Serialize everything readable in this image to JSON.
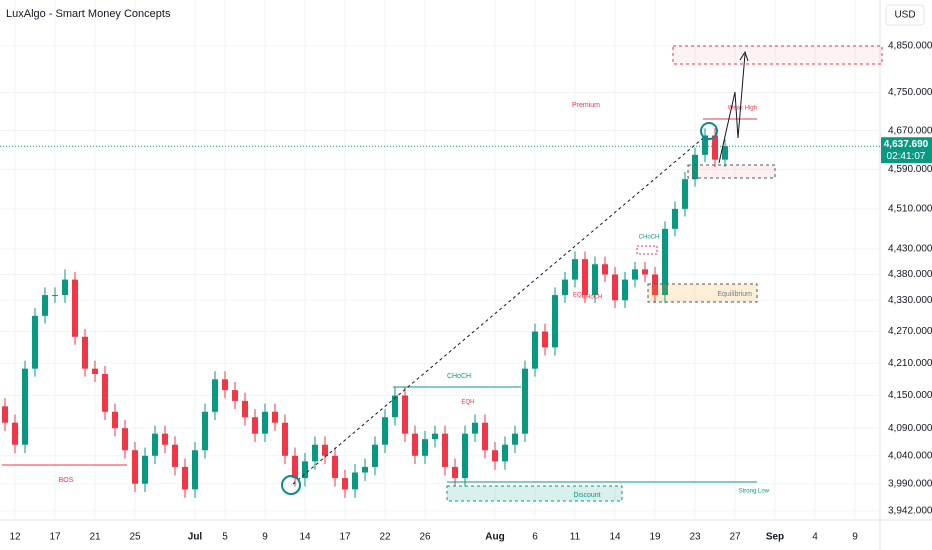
{
  "chart_data": {
    "type": "candlestick",
    "title": "LuxAlgo - Smart Money Concepts",
    "currency": "USD",
    "log_scale": true,
    "up_color": "#089981",
    "down_color": "#f23645",
    "categories": [
      null,
      "12",
      null,
      null,
      null,
      "17",
      null,
      null,
      null,
      "21",
      null,
      null,
      null,
      "25",
      null,
      null,
      null,
      null,
      null,
      "Jul",
      null,
      null,
      "5",
      null,
      null,
      null,
      "9",
      null,
      null,
      null,
      "14",
      null,
      null,
      null,
      "17",
      null,
      null,
      null,
      "22",
      null,
      null,
      null,
      "26",
      null,
      null,
      null,
      null,
      null,
      null,
      "Aug",
      null,
      null,
      null,
      "6",
      null,
      null,
      null,
      "11",
      null,
      null,
      null,
      "14",
      null,
      null,
      null,
      "19",
      null,
      null,
      null,
      "23",
      null,
      null,
      null,
      "27",
      null,
      null,
      null,
      "Sep",
      null,
      null,
      null,
      "4",
      null,
      null,
      null,
      "9",
      null,
      null
    ],
    "open": [
      4130,
      4100,
      4060,
      4200,
      4300,
      4340,
      4340,
      4370,
      4260,
      4200,
      4190,
      4120,
      4090,
      4050,
      3990,
      4040,
      4080,
      4060,
      4020,
      3980,
      4050,
      4120,
      4180,
      4160,
      4140,
      4110,
      4080,
      4120,
      4100,
      4040,
      4000,
      4030,
      4060,
      4040,
      4000,
      3980,
      4010,
      4020,
      4060,
      4110,
      4150,
      4080,
      4040,
      4070,
      4080,
      4020,
      4000,
      4080,
      4100,
      4050,
      4030,
      4060,
      4080,
      4200,
      4270,
      4240,
      4340,
      4370,
      4410,
      4340,
      4400,
      4380,
      4330,
      4370,
      4390,
      4380,
      4340,
      4470,
      4510,
      4570,
      4620,
      4660,
      4610,
      null,
      null,
      null,
      null,
      null,
      null,
      null,
      null,
      null,
      null,
      null,
      null,
      null,
      null,
      null
    ],
    "high": [
      4145,
      4115,
      4215,
      4315,
      4355,
      4355,
      4390,
      4385,
      4275,
      4215,
      4205,
      4135,
      4105,
      4065,
      4055,
      4095,
      4095,
      4075,
      4035,
      4065,
      4135,
      4195,
      4195,
      4175,
      4155,
      4125,
      4135,
      4135,
      4115,
      4055,
      4045,
      4075,
      4075,
      4055,
      4015,
      4025,
      4035,
      4075,
      4125,
      4165,
      4165,
      4095,
      4085,
      4095,
      4095,
      4035,
      4095,
      4115,
      4115,
      4065,
      4075,
      4095,
      4215,
      4285,
      4285,
      4355,
      4385,
      4425,
      4425,
      4415,
      4415,
      4395,
      4385,
      4405,
      4405,
      4395,
      4485,
      4525,
      4585,
      4635,
      4675,
      4675,
      4652,
      null,
      null,
      null,
      null,
      null,
      null,
      null,
      null,
      null,
      null,
      null,
      null,
      null,
      null,
      null
    ],
    "low": [
      4085,
      4045,
      4045,
      4185,
      4285,
      4325,
      4325,
      4245,
      4185,
      4175,
      4105,
      4075,
      4035,
      3975,
      3975,
      4025,
      4045,
      4005,
      3965,
      3965,
      4035,
      4105,
      4145,
      4125,
      4095,
      4065,
      4065,
      4085,
      4025,
      3985,
      3985,
      4015,
      4025,
      3985,
      3965,
      3965,
      3995,
      4005,
      4045,
      4095,
      4065,
      4025,
      4025,
      4055,
      4005,
      3985,
      3985,
      4065,
      4035,
      4015,
      4015,
      4045,
      4065,
      4185,
      4225,
      4225,
      4325,
      4355,
      4325,
      4325,
      4365,
      4315,
      4315,
      4355,
      4365,
      4325,
      4325,
      4455,
      4495,
      4555,
      4605,
      4595,
      4595,
      null,
      null,
      null,
      null,
      null,
      null,
      null,
      null,
      null,
      null,
      null,
      null,
      null,
      null,
      null
    ],
    "close": [
      4100,
      4060,
      4200,
      4300,
      4340,
      4340,
      4370,
      4260,
      4200,
      4190,
      4120,
      4090,
      4050,
      3990,
      4040,
      4080,
      4060,
      4020,
      3980,
      4050,
      4120,
      4180,
      4160,
      4140,
      4110,
      4080,
      4120,
      4100,
      4040,
      4000,
      4030,
      4060,
      4040,
      4000,
      3980,
      4010,
      4020,
      4060,
      4110,
      4150,
      4080,
      4040,
      4070,
      4080,
      4020,
      4000,
      4080,
      4100,
      4050,
      4030,
      4060,
      4080,
      4200,
      4270,
      4240,
      4340,
      4370,
      4410,
      4340,
      4400,
      4380,
      4330,
      4370,
      4390,
      4380,
      4340,
      4470,
      4510,
      4570,
      4620,
      4660,
      4610,
      4637.69,
      null,
      null,
      null,
      null,
      null,
      null,
      null,
      null,
      null,
      null,
      null,
      null,
      null,
      null,
      null
    ],
    "ylim": [
      3926,
      4950
    ],
    "yticks": [
      {
        "value": 4850,
        "label": "4,850.000"
      },
      {
        "value": 4750,
        "label": "4,750.000"
      },
      {
        "value": 4670,
        "label": "4,670.000"
      },
      {
        "value": 4590,
        "label": "4,590.000"
      },
      {
        "value": 4510,
        "label": "4,510.000"
      },
      {
        "value": 4430,
        "label": "4,430.000"
      },
      {
        "value": 4380,
        "label": "4,380.000"
      },
      {
        "value": 4330,
        "label": "4,330.000"
      },
      {
        "value": 4270,
        "label": "4,270.000"
      },
      {
        "value": 4210,
        "label": "4,210.000"
      },
      {
        "value": 4150,
        "label": "4,150.000"
      },
      {
        "value": 4090,
        "label": "4,090.000"
      },
      {
        "value": 4040,
        "label": "4,040.000"
      },
      {
        "value": 3990,
        "label": "3,990.000"
      },
      {
        "value": 3942,
        "label": "3,942.000"
      }
    ],
    "last_price": {
      "value": 4637.69,
      "label": "4,637.690"
    },
    "countdown": "02:41:07",
    "annotations": {
      "premium": "Premium",
      "weak_high": "Weak High",
      "equilibrium": "Equilibrium",
      "discount": "Discount",
      "strong_low": "Strong Low",
      "bos": "BOS",
      "choch_1": "CHoCH",
      "choch_2": "CHoCH",
      "choch_3": "CHoCH",
      "eqh": "EQH",
      "eql": "EQL"
    }
  }
}
